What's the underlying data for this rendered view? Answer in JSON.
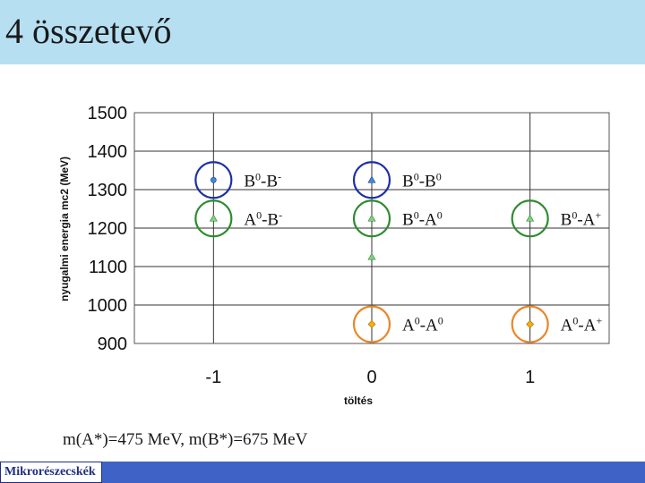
{
  "slide": {
    "title": "4 összetevő",
    "footnote": "m(A*)=475 MeV, m(B*)=675 MeV",
    "footer_label": "Mikrorészecskék",
    "colors": {
      "header_bg": "#b7dff2",
      "footer_bg": "#3f62c6",
      "footer_text": "#1f2f80"
    }
  },
  "chart_data": {
    "type": "scatter",
    "title": "",
    "xlabel": "töltés",
    "ylabel": "nyugalmi energia mc2 (MeV)",
    "xlim": [
      -1.5,
      1.5
    ],
    "ylim": [
      900,
      1500
    ],
    "x_ticks": [
      "-1",
      "0",
      "1"
    ],
    "x_tick_values": [
      -1,
      0,
      1
    ],
    "y_ticks": [
      "900",
      "1000",
      "1100",
      "1200",
      "1300",
      "1400",
      "1500"
    ],
    "y_tick_values": [
      900,
      1000,
      1100,
      1200,
      1300,
      1400,
      1500
    ],
    "grid": true,
    "legend": "none",
    "points": [
      {
        "x": -1,
        "y": 1325,
        "label_base": "B",
        "label_base_sup": "0",
        "label_sep": "-",
        "label_tail": "B",
        "label_tail_sup": "-",
        "color": "#1c2fa8",
        "marker": "circle-blue"
      },
      {
        "x": 0,
        "y": 1325,
        "label_base": "B",
        "label_base_sup": "0",
        "label_sep": "-",
        "label_tail": "B",
        "label_tail_sup": "0",
        "color": "#1c2fa8",
        "marker": "triangle-blue"
      },
      {
        "x": -1,
        "y": 1225,
        "label_base": "A",
        "label_base_sup": "0",
        "label_sep": "-",
        "label_tail": "B",
        "label_tail_sup": "-",
        "color": "#2e8b2e",
        "marker": "triangle-green"
      },
      {
        "x": 0,
        "y": 1225,
        "label_base": "B",
        "label_base_sup": "0",
        "label_sep": "-",
        "label_tail": "A",
        "label_tail_sup": "0",
        "color": "#2e8b2e",
        "marker": "triangle-green"
      },
      {
        "x": 1,
        "y": 1225,
        "label_base": "B",
        "label_base_sup": "0",
        "label_sep": "-",
        "label_tail": "A",
        "label_tail_sup": "+",
        "color": "#2e8b2e",
        "marker": "triangle-green"
      },
      {
        "x": 0,
        "y": 1125,
        "label_base": "",
        "label_base_sup": "",
        "label_sep": "",
        "label_tail": "",
        "label_tail_sup": "",
        "color": "#2e8b2e",
        "marker": "triangle-green"
      },
      {
        "x": 0,
        "y": 950,
        "label_base": "A",
        "label_base_sup": "0",
        "label_sep": "-",
        "label_tail": "A",
        "label_tail_sup": "0",
        "color": "#e8862a",
        "marker": "diamond-orange"
      },
      {
        "x": 1,
        "y": 950,
        "label_base": "A",
        "label_base_sup": "0",
        "label_sep": "-",
        "label_tail": "A",
        "label_tail_sup": "+",
        "color": "#e8862a",
        "marker": "diamond-orange"
      }
    ],
    "point_colors": {
      "blue_fill": "#3a8fd0",
      "green_fill": "#7fd07f",
      "orange_fill": "#f0b400"
    }
  }
}
